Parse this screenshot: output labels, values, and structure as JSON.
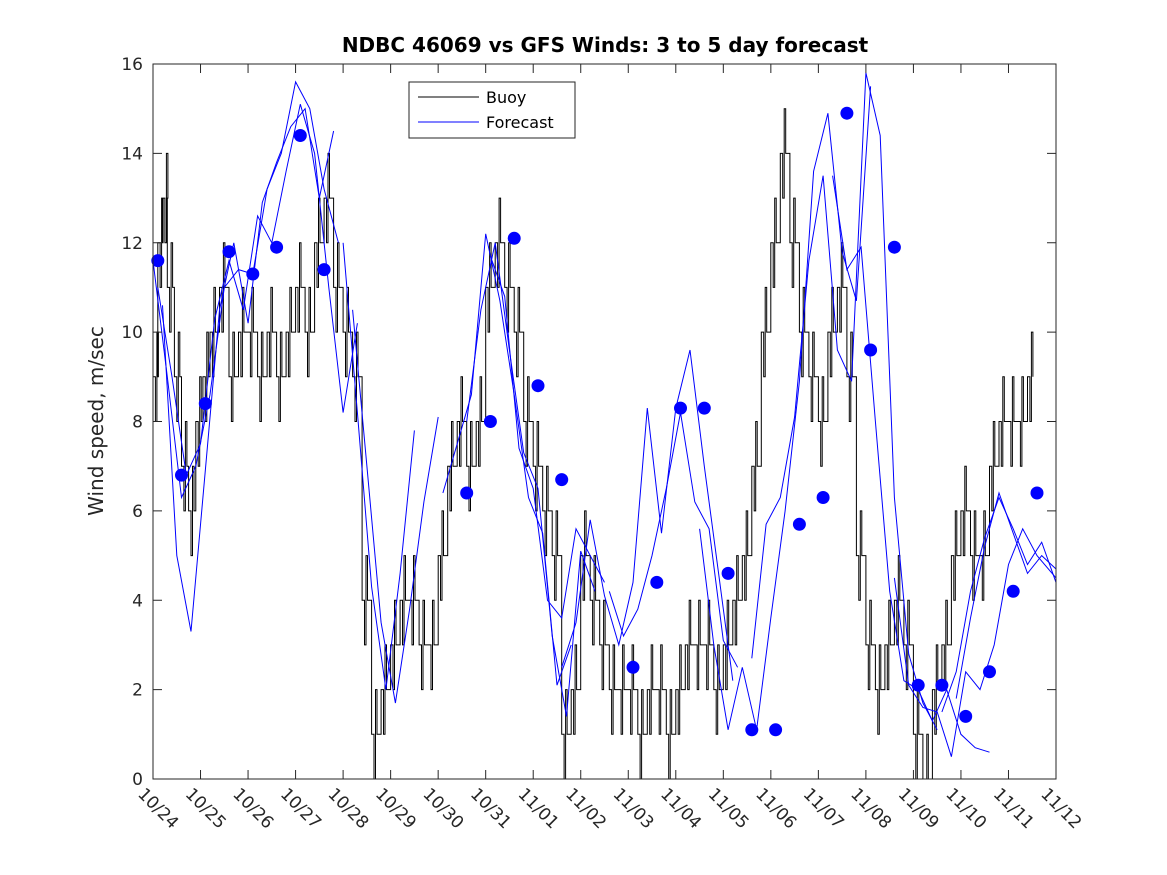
{
  "chart_data": {
    "type": "line",
    "title": "NDBC 46069 vs GFS Winds: 3 to 5 day forecast",
    "xlabel": "",
    "ylabel": "Wind speed, m/sec",
    "xlim": [
      0,
      19
    ],
    "ylim": [
      0,
      16
    ],
    "x_ticks": [
      0,
      1,
      2,
      3,
      4,
      5,
      6,
      7,
      8,
      9,
      10,
      11,
      12,
      13,
      14,
      15,
      16,
      17,
      18,
      19
    ],
    "x_tick_labels": [
      "10/24",
      "10/25",
      "10/26",
      "10/27",
      "10/28",
      "10/29",
      "10/30",
      "10/31",
      "11/01",
      "11/02",
      "11/03",
      "11/04",
      "11/05",
      "11/06",
      "11/07",
      "11/08",
      "11/09",
      "11/10",
      "11/11",
      "11/12"
    ],
    "y_ticks": [
      0,
      2,
      4,
      6,
      8,
      10,
      12,
      14,
      16
    ],
    "y_tick_labels": [
      "0",
      "2",
      "4",
      "6",
      "8",
      "10",
      "12",
      "14",
      "16"
    ],
    "legend_position": "top-center",
    "legend": [
      {
        "label": "Buoy",
        "color": "#000000"
      },
      {
        "label": "Forecast",
        "color": "#0000ff"
      }
    ],
    "buoy": {
      "name": "Buoy",
      "color": "#000000",
      "x": [
        0.0,
        0.1,
        0.2,
        0.3,
        0.45,
        0.6,
        0.75,
        0.9,
        1.05,
        1.2,
        1.4,
        1.6,
        1.8,
        2.0,
        2.2,
        2.4,
        2.6,
        2.8,
        3.0,
        3.2,
        3.4,
        3.6,
        3.8,
        4.0,
        4.2,
        4.4,
        4.6,
        4.8,
        5.0,
        5.2,
        5.4,
        5.6,
        5.8,
        6.0,
        6.2,
        6.4,
        6.6,
        6.8,
        7.0,
        7.2,
        7.4,
        7.6,
        7.8,
        8.0,
        8.2,
        8.4,
        8.6,
        8.8,
        9.0,
        9.2,
        9.4,
        9.6,
        9.8,
        10.0,
        10.2,
        10.4,
        10.6,
        10.8,
        11.0,
        11.2,
        11.4,
        11.6,
        11.8,
        12.0,
        12.2,
        12.4,
        12.6,
        12.8,
        13.0,
        13.2,
        13.4,
        13.6,
        13.8,
        14.0,
        14.2,
        14.4,
        14.6,
        14.8,
        15.0,
        15.2,
        15.4,
        15.6,
        15.8,
        16.0,
        16.2,
        16.4,
        16.6,
        16.8,
        17.0,
        17.2,
        17.4,
        17.6,
        17.8,
        18.0,
        18.2,
        18.4
      ],
      "values": [
        9,
        12,
        13,
        11,
        9,
        7,
        6,
        8,
        9,
        10,
        11,
        9,
        10,
        10,
        9,
        10,
        9,
        10,
        11,
        10,
        12,
        13,
        11,
        10,
        9,
        4,
        1,
        2,
        3,
        4,
        4,
        3,
        3,
        5,
        7,
        8,
        7,
        8,
        11,
        12,
        11,
        10,
        8,
        7,
        6,
        5,
        1,
        2,
        5,
        4,
        3,
        2,
        2,
        2,
        1,
        2,
        2,
        1,
        2,
        3,
        3,
        3,
        2,
        3,
        4,
        5,
        7,
        10,
        12,
        14,
        12,
        10,
        9,
        8,
        10,
        11,
        9,
        5,
        3,
        2,
        3,
        4,
        3,
        1,
        0,
        2,
        3,
        5,
        6,
        5,
        5,
        7,
        8,
        8,
        8,
        9
      ]
    },
    "forecast_runs": [
      {
        "name": "Forecast",
        "x": [
          0.0,
          0.3,
          0.6,
          0.9,
          1.2,
          1.5,
          1.8,
          2.1,
          2.4,
          2.7,
          3.0,
          3.3,
          3.6,
          3.9
        ],
        "values": [
          11.6,
          9.0,
          6.3,
          7.0,
          8.6,
          11.0,
          11.4,
          11.3,
          13.2,
          14.0,
          15.6,
          15.0,
          13.2,
          12.0
        ]
      },
      {
        "name": "Forecast",
        "x": [
          0.2,
          0.5,
          0.8,
          1.1,
          1.4,
          1.7,
          2.0,
          2.3,
          2.6,
          2.9,
          3.2,
          3.5,
          3.8
        ],
        "values": [
          10.6,
          5.0,
          3.3,
          6.9,
          10.5,
          12.0,
          10.2,
          12.9,
          13.8,
          14.6,
          15.0,
          13.0,
          14.5
        ]
      },
      {
        "name": "Forecast",
        "x": [
          0.1,
          0.4,
          0.7,
          1.0,
          1.3,
          1.6,
          1.9,
          2.2,
          2.5,
          2.8,
          3.1,
          3.4,
          3.7,
          4.0,
          4.3
        ],
        "values": [
          11.0,
          9.0,
          6.8,
          7.5,
          10.3,
          11.6,
          10.5,
          12.6,
          12.0,
          13.6,
          15.1,
          14.0,
          11.0,
          8.2,
          10.2
        ]
      },
      {
        "name": "Forecast",
        "x": [
          4.0,
          4.3,
          4.6,
          4.9,
          5.2,
          5.5
        ],
        "values": [
          12.0,
          8.2,
          4.3,
          2.0,
          4.6,
          7.8
        ]
      },
      {
        "name": "Forecast",
        "x": [
          4.2,
          4.5,
          4.8,
          5.1,
          5.4,
          5.7,
          6.0
        ],
        "values": [
          10.5,
          7.0,
          3.5,
          1.7,
          3.8,
          6.2,
          8.1
        ]
      },
      {
        "name": "Forecast",
        "x": [
          6.1,
          6.4,
          6.7,
          7.0,
          7.3,
          7.6,
          7.9,
          8.2,
          8.5,
          8.8
        ],
        "values": [
          6.4,
          7.5,
          8.6,
          12.2,
          10.7,
          8.6,
          6.3,
          5.5,
          2.1,
          3.0
        ]
      },
      {
        "name": "Forecast",
        "x": [
          6.6,
          6.9,
          7.2,
          7.5,
          7.8,
          8.1,
          8.4,
          8.7,
          9.0,
          9.3
        ],
        "values": [
          8.0,
          10.5,
          12.0,
          9.6,
          7.3,
          6.5,
          3.2,
          1.4,
          5.1,
          4.2
        ]
      },
      {
        "name": "Forecast",
        "x": [
          7.1,
          7.4,
          7.7,
          8.0,
          8.3,
          8.6,
          8.9,
          9.2,
          9.5
        ],
        "values": [
          11.7,
          10.8,
          7.4,
          6.5,
          4.0,
          3.6,
          5.6,
          5.0,
          4.4
        ]
      },
      {
        "name": "Forecast",
        "x": [
          8.6,
          8.9,
          9.2,
          9.5,
          9.8,
          10.1,
          10.4,
          10.7,
          11.0,
          11.3,
          11.6,
          11.9,
          12.2
        ],
        "values": [
          2.5,
          3.5,
          5.8,
          4.1,
          3.0,
          4.4,
          8.3,
          5.5,
          8.3,
          9.6,
          7.0,
          4.6,
          2.2
        ]
      },
      {
        "name": "Forecast",
        "x": [
          9.6,
          9.9,
          10.2,
          10.5,
          10.8,
          11.1,
          11.4,
          11.7,
          12.0,
          12.3
        ],
        "values": [
          4.2,
          3.2,
          3.8,
          5.0,
          6.5,
          8.2,
          6.2,
          5.6,
          3.1,
          2.5
        ]
      },
      {
        "name": "Forecast",
        "x": [
          11.5,
          11.8,
          12.1,
          12.4,
          12.7,
          13.0,
          13.3,
          13.6,
          13.9,
          14.2,
          14.5,
          14.8,
          15.1
        ],
        "values": [
          5.6,
          3.0,
          1.1,
          2.5,
          1.1,
          3.6,
          6.0,
          8.9,
          13.6,
          14.9,
          11.8,
          10.7,
          15.5
        ]
      },
      {
        "name": "Forecast",
        "x": [
          12.6,
          12.9,
          13.2,
          13.5,
          13.8,
          14.1,
          14.4,
          14.7,
          15.0,
          15.3,
          15.6,
          15.9,
          16.2,
          16.5
        ],
        "values": [
          2.7,
          5.7,
          6.3,
          8.1,
          11.6,
          13.5,
          9.6,
          8.9,
          15.8,
          14.4,
          6.3,
          2.8,
          1.7,
          1.1
        ]
      },
      {
        "name": "Forecast",
        "x": [
          14.3,
          14.6,
          14.9,
          15.2,
          15.5,
          15.8,
          16.1,
          16.4,
          16.7,
          17.0,
          17.3,
          17.6
        ],
        "values": [
          13.5,
          11.4,
          11.9,
          8.0,
          4.2,
          2.2,
          2.0,
          1.3,
          2.0,
          1.0,
          0.7,
          0.6
        ]
      },
      {
        "name": "Forecast",
        "x": [
          15.6,
          15.9,
          16.2,
          16.5,
          16.8,
          17.1,
          17.4,
          17.7,
          18.0,
          18.3,
          18.6,
          19.0
        ],
        "values": [
          4.5,
          2.1,
          1.6,
          1.5,
          0.5,
          2.4,
          2.0,
          3.0,
          4.8,
          5.6,
          5.0,
          4.5
        ]
      },
      {
        "name": "Forecast",
        "x": [
          16.6,
          16.9,
          17.2,
          17.5,
          17.8,
          18.1,
          18.4,
          18.7,
          19.0
        ],
        "values": [
          1.5,
          2.4,
          4.2,
          5.4,
          6.3,
          5.6,
          4.8,
          5.3,
          4.4
        ]
      },
      {
        "name": "Forecast",
        "x": [
          16.9,
          17.2,
          17.5,
          17.8,
          18.1,
          18.4,
          18.7,
          19.0
        ],
        "values": [
          1.8,
          3.6,
          5.2,
          6.4,
          5.5,
          4.6,
          5.0,
          4.7
        ]
      }
    ],
    "analysis_points": {
      "name": "Forecast (analysis dots)",
      "color": "#0000ff",
      "x": [
        0.1,
        0.6,
        1.1,
        1.6,
        2.1,
        2.6,
        3.1,
        3.6,
        6.6,
        7.1,
        7.6,
        8.1,
        8.6,
        10.1,
        10.6,
        11.1,
        11.6,
        12.1,
        12.6,
        13.1,
        13.6,
        14.1,
        14.6,
        15.1,
        15.6,
        16.1,
        16.6,
        17.1,
        17.6,
        18.1,
        18.6
      ],
      "values": [
        11.6,
        6.8,
        8.4,
        11.8,
        11.3,
        11.9,
        14.4,
        11.4,
        6.4,
        8.0,
        12.1,
        8.8,
        6.7,
        2.5,
        4.4,
        8.3,
        8.3,
        4.6,
        1.1,
        1.1,
        5.7,
        6.3,
        14.9,
        9.6,
        11.9,
        2.1,
        2.1,
        1.4,
        2.4,
        4.2,
        6.4
      ]
    }
  }
}
